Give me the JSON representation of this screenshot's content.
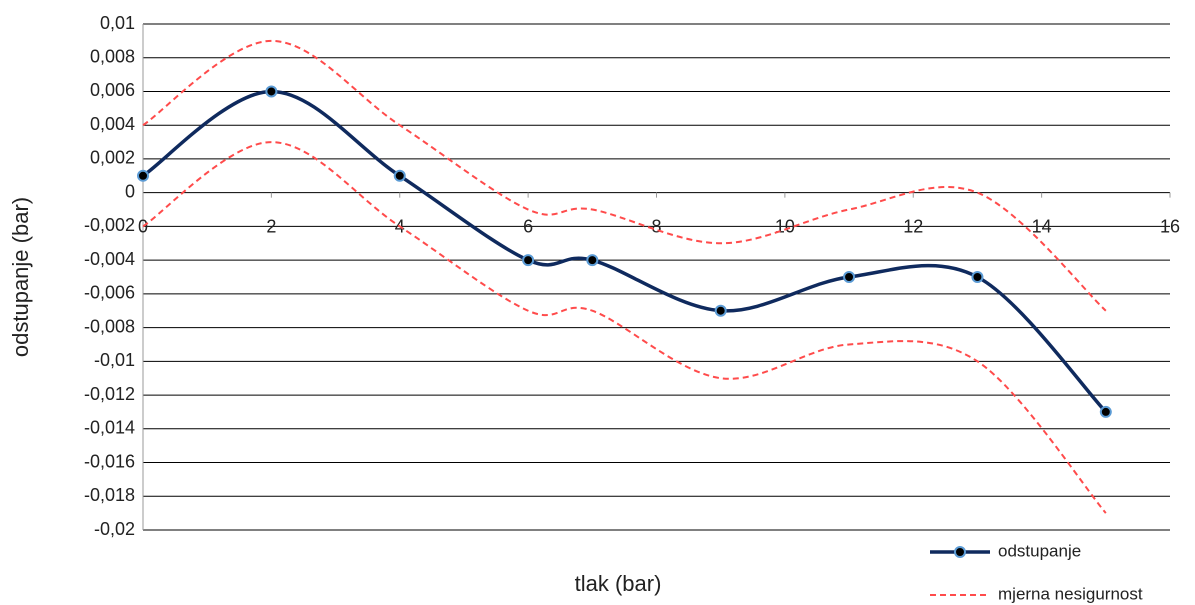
{
  "chart_data": {
    "type": "line",
    "x_label": "tlak (bar)",
    "y_label": "odstupanje (bar)",
    "x": [
      0,
      2,
      4,
      6,
      7,
      9,
      11,
      13,
      15
    ],
    "series": [
      {
        "name": "odstupanje",
        "color": "#0f2a5e",
        "marker_color": "#5b9bd5",
        "values": [
          0.001,
          0.006,
          0.001,
          -0.004,
          -0.004,
          -0.007,
          -0.005,
          -0.005,
          -0.013
        ]
      },
      {
        "name": "mjerna nesigurnost",
        "color": "#ff4b4b",
        "dashed": true,
        "upper": [
          0.004,
          0.009,
          0.004,
          -0.001,
          -0.001,
          -0.003,
          -0.001,
          0,
          -0.007
        ],
        "lower": [
          -0.002,
          0.003,
          -0.002,
          -0.007,
          -0.007,
          -0.011,
          -0.009,
          -0.01,
          -0.019
        ]
      }
    ],
    "xlim": [
      0,
      16
    ],
    "xticks": [
      0,
      2,
      4,
      6,
      8,
      10,
      12,
      14,
      16
    ],
    "ylim": [
      -0.02,
      0.01
    ],
    "yticks": [
      {
        "value": 0.01,
        "label": "0,01"
      },
      {
        "value": 0.008,
        "label": "0,008"
      },
      {
        "value": 0.006,
        "label": "0,006"
      },
      {
        "value": 0.004,
        "label": "0,004"
      },
      {
        "value": 0.002,
        "label": "0,002"
      },
      0,
      {
        "value": -0.002,
        "label": "-0,002"
      },
      {
        "value": -0.004,
        "label": "-0,004"
      },
      {
        "value": -0.006,
        "label": "-0,006"
      },
      {
        "value": -0.008,
        "label": "-0,008"
      },
      {
        "value": -0.01,
        "label": "-0,01"
      },
      {
        "value": -0.012,
        "label": "-0,012"
      },
      {
        "value": -0.014,
        "label": "-0,014"
      },
      {
        "value": -0.016,
        "label": "-0,016"
      },
      {
        "value": -0.018,
        "label": "-0,018"
      },
      {
        "value": -0.02,
        "label": "-0,02"
      }
    ],
    "grid": true
  }
}
